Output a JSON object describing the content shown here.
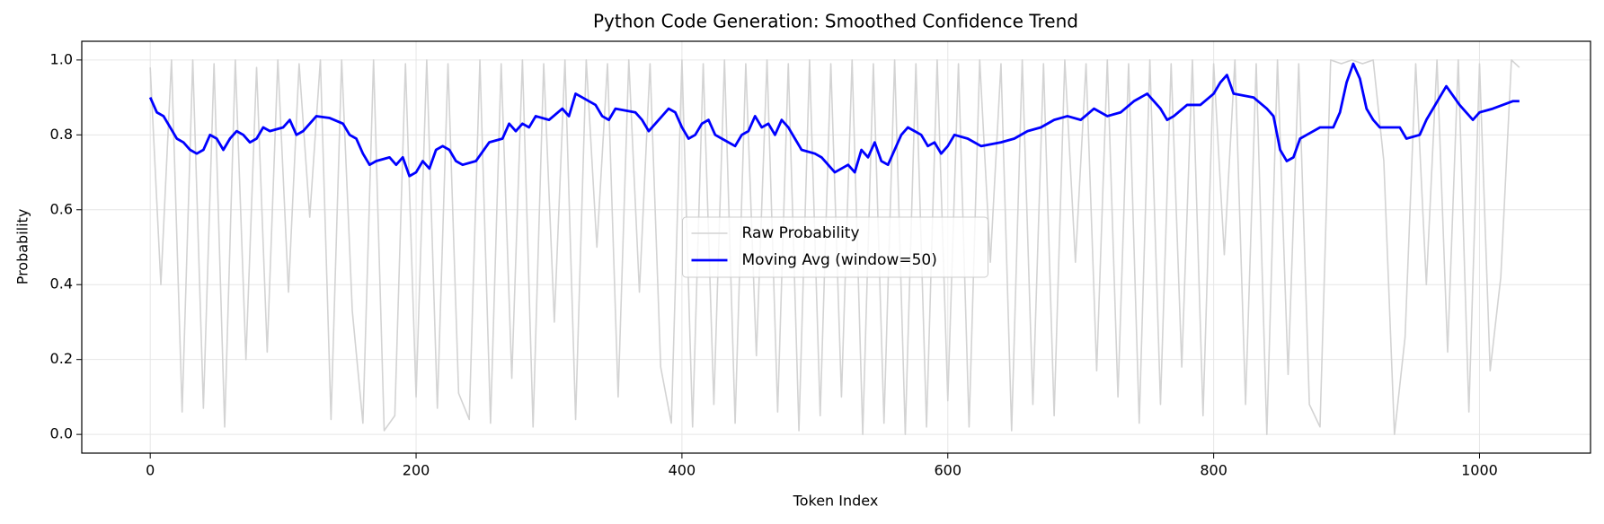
{
  "chart_data": {
    "type": "line",
    "title": "Python Code Generation: Smoothed Confidence Trend",
    "x_label": "Token Index",
    "y_label": "Probability",
    "xlim": [
      -51.5,
      1083.5
    ],
    "ylim": [
      -0.05,
      1.05
    ],
    "xticks": [
      0,
      200,
      400,
      600,
      800,
      1000
    ],
    "yticks": [
      {
        "value": 0,
        "label": "0.0"
      },
      0.2,
      0.4,
      0.6,
      0.8,
      {
        "value": 1,
        "label": "1.0"
      }
    ],
    "grid": true,
    "legend": "center",
    "series": [
      {
        "name": "Raw Probability",
        "color": "#d3d3d3",
        "width": 1.6,
        "x": [
          0,
          8,
          16,
          24,
          32,
          40,
          48,
          56,
          64,
          72,
          80,
          88,
          96,
          104,
          112,
          120,
          128,
          136,
          144,
          152,
          160,
          168,
          176,
          184,
          192,
          200,
          208,
          216,
          224,
          232,
          240,
          248,
          256,
          264,
          272,
          280,
          288,
          296,
          304,
          312,
          320,
          328,
          336,
          344,
          352,
          360,
          368,
          376,
          384,
          392,
          400,
          408,
          416,
          424,
          432,
          440,
          448,
          456,
          464,
          472,
          480,
          488,
          496,
          504,
          512,
          520,
          528,
          536,
          544,
          552,
          560,
          568,
          576,
          584,
          592,
          600,
          608,
          616,
          624,
          632,
          640,
          648,
          656,
          664,
          672,
          680,
          688,
          696,
          704,
          712,
          720,
          728,
          736,
          744,
          752,
          760,
          768,
          776,
          784,
          792,
          800,
          808,
          816,
          824,
          832,
          840,
          848,
          856,
          864,
          872,
          880,
          888,
          896,
          904,
          912,
          920,
          928,
          936,
          944,
          952,
          960,
          968,
          976,
          984,
          992,
          1000,
          1008,
          1016,
          1024,
          1030
        ],
        "values": [
          0.98,
          0.4,
          1.0,
          0.06,
          1.0,
          0.07,
          0.99,
          0.02,
          1.0,
          0.2,
          0.98,
          0.22,
          1.0,
          0.38,
          0.99,
          0.58,
          1.0,
          0.04,
          1.0,
          0.33,
          0.03,
          1.0,
          0.01,
          0.05,
          0.99,
          0.1,
          1.0,
          0.07,
          0.99,
          0.11,
          0.04,
          1.0,
          0.03,
          0.99,
          0.15,
          1.0,
          0.02,
          0.99,
          0.3,
          1.0,
          0.04,
          1.0,
          0.5,
          0.99,
          0.1,
          1.0,
          0.38,
          0.99,
          0.18,
          0.03,
          1.0,
          0.02,
          0.99,
          0.08,
          1.0,
          0.03,
          0.99,
          0.21,
          1.0,
          0.06,
          0.99,
          0.01,
          1.0,
          0.05,
          0.99,
          0.1,
          1.0,
          0.0,
          0.99,
          0.03,
          1.0,
          0.0,
          0.99,
          0.02,
          1.0,
          0.09,
          0.99,
          0.02,
          1.0,
          0.46,
          0.99,
          0.01,
          1.0,
          0.08,
          0.99,
          0.05,
          1.0,
          0.46,
          0.99,
          0.17,
          1.0,
          0.1,
          0.99,
          0.03,
          1.0,
          0.08,
          0.99,
          0.18,
          1.0,
          0.05,
          0.99,
          0.48,
          1.0,
          0.08,
          0.99,
          0.0,
          1.0,
          0.16,
          0.99,
          0.08,
          0.02,
          1.0,
          0.99,
          1.0,
          0.99,
          1.0,
          0.73,
          0.0,
          0.26,
          0.99,
          0.4,
          1.0,
          0.22,
          1.0,
          0.06,
          0.99,
          0.17,
          0.42,
          1.0,
          0.98
        ]
      },
      {
        "name": "Moving Avg (window=50)",
        "color": "#0000ff",
        "width": 2.8,
        "x": [
          0,
          5,
          10,
          15,
          20,
          25,
          30,
          35,
          40,
          45,
          50,
          55,
          60,
          65,
          70,
          75,
          80,
          85,
          90,
          100,
          105,
          110,
          115,
          120,
          125,
          135,
          145,
          150,
          155,
          160,
          165,
          170,
          180,
          185,
          190,
          195,
          200,
          205,
          210,
          215,
          220,
          225,
          230,
          235,
          245,
          255,
          265,
          270,
          275,
          280,
          285,
          290,
          300,
          310,
          315,
          320,
          325,
          335,
          340,
          345,
          350,
          365,
          370,
          375,
          380,
          390,
          395,
          400,
          405,
          410,
          415,
          420,
          425,
          430,
          440,
          445,
          450,
          455,
          460,
          465,
          470,
          475,
          480,
          485,
          490,
          500,
          505,
          510,
          515,
          525,
          530,
          535,
          540,
          545,
          550,
          555,
          565,
          570,
          575,
          580,
          585,
          590,
          595,
          600,
          605,
          615,
          625,
          640,
          650,
          660,
          670,
          680,
          690,
          700,
          710,
          720,
          730,
          740,
          750,
          760,
          765,
          770,
          780,
          790,
          800,
          805,
          810,
          815,
          830,
          840,
          845,
          850,
          855,
          860,
          865,
          870,
          880,
          890,
          895,
          900,
          905,
          910,
          915,
          920,
          925,
          940,
          945,
          955,
          960,
          965,
          970,
          975,
          985,
          990,
          995,
          1000,
          1010,
          1025,
          1030
        ],
        "values": [
          0.9,
          0.86,
          0.85,
          0.82,
          0.79,
          0.78,
          0.76,
          0.75,
          0.76,
          0.8,
          0.79,
          0.76,
          0.79,
          0.81,
          0.8,
          0.78,
          0.79,
          0.82,
          0.81,
          0.82,
          0.84,
          0.8,
          0.81,
          0.83,
          0.85,
          0.845,
          0.83,
          0.8,
          0.79,
          0.75,
          0.72,
          0.73,
          0.74,
          0.72,
          0.74,
          0.69,
          0.7,
          0.73,
          0.71,
          0.76,
          0.77,
          0.76,
          0.73,
          0.72,
          0.73,
          0.78,
          0.79,
          0.83,
          0.81,
          0.83,
          0.82,
          0.85,
          0.84,
          0.87,
          0.85,
          0.91,
          0.9,
          0.88,
          0.85,
          0.84,
          0.87,
          0.86,
          0.84,
          0.81,
          0.83,
          0.87,
          0.86,
          0.82,
          0.79,
          0.8,
          0.83,
          0.84,
          0.8,
          0.79,
          0.77,
          0.8,
          0.81,
          0.85,
          0.82,
          0.83,
          0.8,
          0.84,
          0.82,
          0.79,
          0.76,
          0.75,
          0.74,
          0.72,
          0.7,
          0.72,
          0.7,
          0.76,
          0.74,
          0.78,
          0.73,
          0.72,
          0.8,
          0.82,
          0.81,
          0.8,
          0.77,
          0.78,
          0.75,
          0.77,
          0.8,
          0.79,
          0.77,
          0.78,
          0.79,
          0.81,
          0.82,
          0.84,
          0.85,
          0.84,
          0.87,
          0.85,
          0.86,
          0.89,
          0.91,
          0.87,
          0.84,
          0.85,
          0.88,
          0.88,
          0.91,
          0.94,
          0.96,
          0.91,
          0.9,
          0.87,
          0.85,
          0.76,
          0.73,
          0.74,
          0.79,
          0.8,
          0.82,
          0.82,
          0.86,
          0.94,
          0.99,
          0.95,
          0.87,
          0.84,
          0.82,
          0.82,
          0.79,
          0.8,
          0.84,
          0.87,
          0.9,
          0.93,
          0.88,
          0.86,
          0.84,
          0.86,
          0.87,
          0.89,
          0.89
        ]
      }
    ]
  }
}
